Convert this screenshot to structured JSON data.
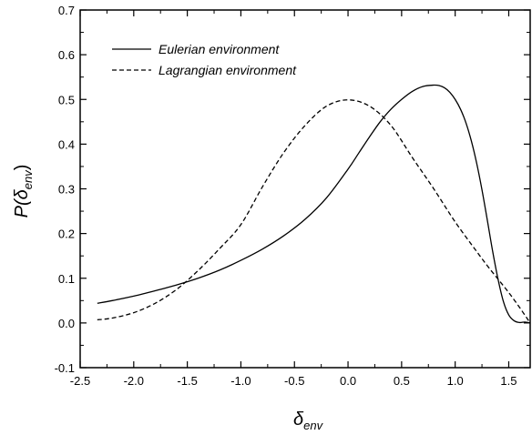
{
  "chart_data": {
    "type": "line",
    "title": "",
    "xlabel": {
      "symbol": "δ",
      "subscript": "env"
    },
    "ylabel": {
      "prefix": "P(",
      "symbol": "δ",
      "subscript": "env",
      "suffix": ")"
    },
    "xlim": [
      -2.5,
      1.7
    ],
    "ylim": [
      -0.1,
      0.7
    ],
    "xticks": [
      "-2.5",
      "-2.0",
      "-1.5",
      "-1.0",
      "-0.5",
      "0.0",
      "0.5",
      "1.0",
      "1.5"
    ],
    "yticks": [
      "-0.1",
      "0.0",
      "0.1",
      "0.2",
      "0.3",
      "0.4",
      "0.5",
      "0.6",
      "0.7"
    ],
    "grid": false,
    "legend_position": "top-left",
    "series": [
      {
        "name": "Eulerian environment",
        "style": "solid",
        "color": "#000000",
        "x": [
          -2.34,
          -2.2,
          -2.0,
          -1.8,
          -1.6,
          -1.4,
          -1.2,
          -1.0,
          -0.8,
          -0.6,
          -0.4,
          -0.2,
          0.0,
          0.1,
          0.2,
          0.3,
          0.4,
          0.5,
          0.6,
          0.7,
          0.8,
          0.85,
          0.9,
          0.95,
          1.0,
          1.05,
          1.1,
          1.15,
          1.2,
          1.25,
          1.3,
          1.35,
          1.4,
          1.45,
          1.5,
          1.55,
          1.6,
          1.65,
          1.7
        ],
        "y": [
          0.044,
          0.05,
          0.06,
          0.072,
          0.085,
          0.1,
          0.118,
          0.14,
          0.165,
          0.195,
          0.232,
          0.28,
          0.344,
          0.38,
          0.416,
          0.45,
          0.478,
          0.5,
          0.518,
          0.529,
          0.532,
          0.531,
          0.526,
          0.516,
          0.5,
          0.478,
          0.448,
          0.408,
          0.358,
          0.298,
          0.23,
          0.16,
          0.098,
          0.048,
          0.018,
          0.005,
          0.001,
          0.002,
          0.0
        ]
      },
      {
        "name": "Lagrangian environment",
        "style": "dashed",
        "color": "#000000",
        "x": [
          -2.34,
          -2.2,
          -2.0,
          -1.8,
          -1.6,
          -1.4,
          -1.2,
          -1.0,
          -0.8,
          -0.6,
          -0.4,
          -0.2,
          0.0,
          0.2,
          0.4,
          0.6,
          0.8,
          1.0,
          1.2,
          1.3,
          1.4,
          1.5,
          1.6,
          1.7
        ],
        "y": [
          0.007,
          0.011,
          0.023,
          0.044,
          0.075,
          0.117,
          0.166,
          0.22,
          0.304,
          0.381,
          0.442,
          0.485,
          0.499,
          0.485,
          0.442,
          0.37,
          0.3,
          0.226,
          0.16,
          0.128,
          0.098,
          0.068,
          0.035,
          0.0
        ]
      }
    ]
  }
}
